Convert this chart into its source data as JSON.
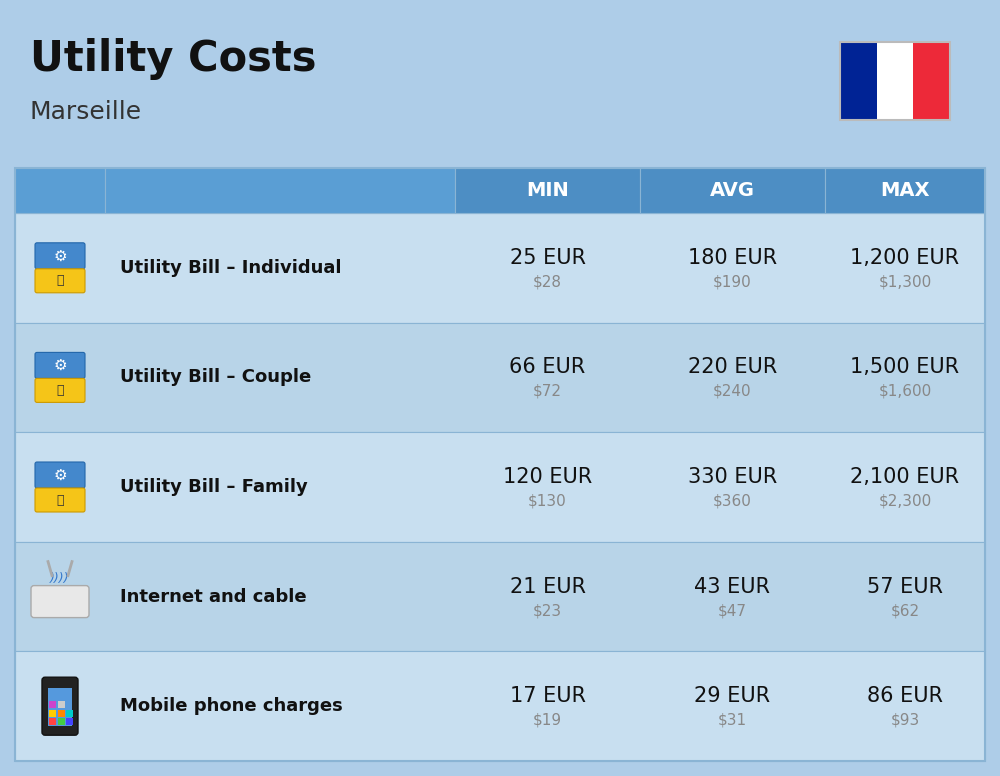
{
  "title": "Utility Costs",
  "subtitle": "Marseille",
  "background_color": "#aecde8",
  "header_color": "#4d8ec4",
  "header_col_color": "#5a9ed4",
  "row_color_odd": "#c8dff0",
  "row_color_even": "#b8d4e8",
  "border_color": "#8ab4d4",
  "text_color": "#111111",
  "usd_color": "#888888",
  "header_text_color": "#ffffff",
  "columns": [
    "MIN",
    "AVG",
    "MAX"
  ],
  "rows": [
    {
      "label": "Utility Bill – Individual",
      "min_eur": "25 EUR",
      "min_usd": "$28",
      "avg_eur": "180 EUR",
      "avg_usd": "$190",
      "max_eur": "1,200 EUR",
      "max_usd": "$1,300"
    },
    {
      "label": "Utility Bill – Couple",
      "min_eur": "66 EUR",
      "min_usd": "$72",
      "avg_eur": "220 EUR",
      "avg_usd": "$240",
      "max_eur": "1,500 EUR",
      "max_usd": "$1,600"
    },
    {
      "label": "Utility Bill – Family",
      "min_eur": "120 EUR",
      "min_usd": "$130",
      "avg_eur": "330 EUR",
      "avg_usd": "$360",
      "max_eur": "2,100 EUR",
      "max_usd": "$2,300"
    },
    {
      "label": "Internet and cable",
      "min_eur": "21 EUR",
      "min_usd": "$23",
      "avg_eur": "43 EUR",
      "avg_usd": "$47",
      "max_eur": "57 EUR",
      "max_usd": "$62"
    },
    {
      "label": "Mobile phone charges",
      "min_eur": "17 EUR",
      "min_usd": "$19",
      "avg_eur": "29 EUR",
      "avg_usd": "$31",
      "max_eur": "86 EUR",
      "max_usd": "$93"
    }
  ],
  "flag_colors": [
    "#002395",
    "#ffffff",
    "#ED2939"
  ],
  "title_fontsize": 30,
  "subtitle_fontsize": 18,
  "header_fontsize": 14,
  "label_fontsize": 13,
  "value_eur_fontsize": 15,
  "value_usd_fontsize": 11
}
